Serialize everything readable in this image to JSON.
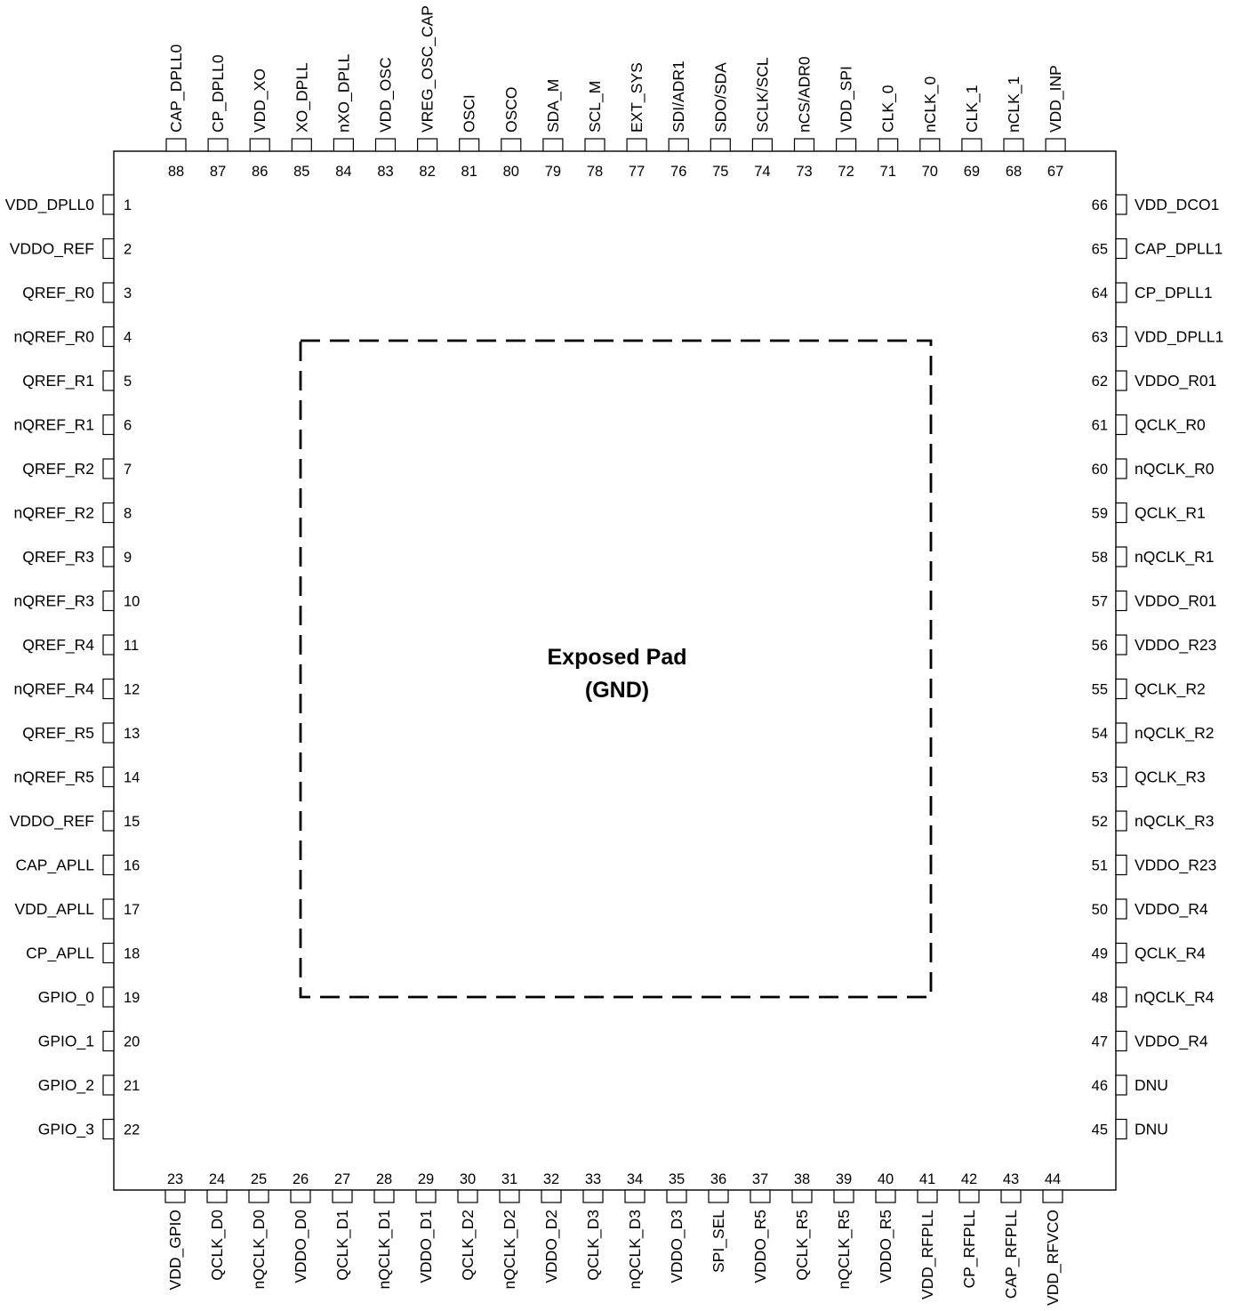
{
  "package": {
    "center_title": "Exposed Pad",
    "center_subtitle": "(GND)"
  },
  "pins": {
    "left": [
      {
        "num": "1",
        "name": "VDD_DPLL0"
      },
      {
        "num": "2",
        "name": "VDDO_REF"
      },
      {
        "num": "3",
        "name": "QREF_R0"
      },
      {
        "num": "4",
        "name": "nQREF_R0"
      },
      {
        "num": "5",
        "name": "QREF_R1"
      },
      {
        "num": "6",
        "name": "nQREF_R1"
      },
      {
        "num": "7",
        "name": "QREF_R2"
      },
      {
        "num": "8",
        "name": "nQREF_R2"
      },
      {
        "num": "9",
        "name": "QREF_R3"
      },
      {
        "num": "10",
        "name": "nQREF_R3"
      },
      {
        "num": "11",
        "name": "QREF_R4"
      },
      {
        "num": "12",
        "name": "nQREF_R4"
      },
      {
        "num": "13",
        "name": "QREF_R5"
      },
      {
        "num": "14",
        "name": "nQREF_R5"
      },
      {
        "num": "15",
        "name": "VDDO_REF"
      },
      {
        "num": "16",
        "name": "CAP_APLL"
      },
      {
        "num": "17",
        "name": "VDD_APLL"
      },
      {
        "num": "18",
        "name": "CP_APLL"
      },
      {
        "num": "19",
        "name": "GPIO_0"
      },
      {
        "num": "20",
        "name": "GPIO_1"
      },
      {
        "num": "21",
        "name": "GPIO_2"
      },
      {
        "num": "22",
        "name": "GPIO_3"
      }
    ],
    "bottom": [
      {
        "num": "23",
        "name": "VDD_GPIO"
      },
      {
        "num": "24",
        "name": "QCLK_D0"
      },
      {
        "num": "25",
        "name": "nQCLK_D0"
      },
      {
        "num": "26",
        "name": "VDDO_D0"
      },
      {
        "num": "27",
        "name": "QCLK_D1"
      },
      {
        "num": "28",
        "name": "nQCLK_D1"
      },
      {
        "num": "29",
        "name": "VDDO_D1"
      },
      {
        "num": "30",
        "name": "QCLK_D2"
      },
      {
        "num": "31",
        "name": "nQCLK_D2"
      },
      {
        "num": "32",
        "name": "VDDO_D2"
      },
      {
        "num": "33",
        "name": "QCLK_D3"
      },
      {
        "num": "34",
        "name": "nQCLK_D3"
      },
      {
        "num": "35",
        "name": "VDDO_D3"
      },
      {
        "num": "36",
        "name": "SPI_SEL"
      },
      {
        "num": "37",
        "name": "VDDO_R5"
      },
      {
        "num": "38",
        "name": "QCLK_R5"
      },
      {
        "num": "39",
        "name": "nQCLK_R5"
      },
      {
        "num": "40",
        "name": "VDDO_R5"
      },
      {
        "num": "41",
        "name": "VDD_RFPLL"
      },
      {
        "num": "42",
        "name": "CP_RFPLL"
      },
      {
        "num": "43",
        "name": "CAP_RFPLL"
      },
      {
        "num": "44",
        "name": "VDD_RFVCO"
      }
    ],
    "right": [
      {
        "num": "66",
        "name": "VDD_DCO1"
      },
      {
        "num": "65",
        "name": "CAP_DPLL1"
      },
      {
        "num": "64",
        "name": "CP_DPLL1"
      },
      {
        "num": "63",
        "name": "VDD_DPLL1"
      },
      {
        "num": "62",
        "name": "VDDO_R01"
      },
      {
        "num": "61",
        "name": "QCLK_R0"
      },
      {
        "num": "60",
        "name": "nQCLK_R0"
      },
      {
        "num": "59",
        "name": "QCLK_R1"
      },
      {
        "num": "58",
        "name": "nQCLK_R1"
      },
      {
        "num": "57",
        "name": "VDDO_R01"
      },
      {
        "num": "56",
        "name": "VDDO_R23"
      },
      {
        "num": "55",
        "name": "QCLK_R2"
      },
      {
        "num": "54",
        "name": "nQCLK_R2"
      },
      {
        "num": "53",
        "name": "QCLK_R3"
      },
      {
        "num": "52",
        "name": "nQCLK_R3"
      },
      {
        "num": "51",
        "name": "VDDO_R23"
      },
      {
        "num": "50",
        "name": "VDDO_R4"
      },
      {
        "num": "49",
        "name": "QCLK_R4"
      },
      {
        "num": "48",
        "name": "nQCLK_R4"
      },
      {
        "num": "47",
        "name": "VDDO_R4"
      },
      {
        "num": "46",
        "name": "DNU"
      },
      {
        "num": "45",
        "name": "DNU"
      }
    ],
    "top": [
      {
        "num": "88",
        "name": "CAP_DPLL0"
      },
      {
        "num": "87",
        "name": "CP_DPLL0"
      },
      {
        "num": "86",
        "name": "VDD_XO"
      },
      {
        "num": "85",
        "name": "XO_DPLL"
      },
      {
        "num": "84",
        "name": "nXO_DPLL"
      },
      {
        "num": "83",
        "name": "VDD_OSC"
      },
      {
        "num": "82",
        "name": "VREG_OSC_CAP"
      },
      {
        "num": "81",
        "name": "OSCI"
      },
      {
        "num": "80",
        "name": "OSCO"
      },
      {
        "num": "79",
        "name": "SDA_M"
      },
      {
        "num": "78",
        "name": "SCL_M"
      },
      {
        "num": "77",
        "name": "EXT_SYS"
      },
      {
        "num": "76",
        "name": "SDI/ADR1"
      },
      {
        "num": "75",
        "name": "SDO/SDA"
      },
      {
        "num": "74",
        "name": "SCLK/SCL"
      },
      {
        "num": "73",
        "name": "nCS/ADR0"
      },
      {
        "num": "72",
        "name": "VDD_SPI"
      },
      {
        "num": "71",
        "name": "CLK_0"
      },
      {
        "num": "70",
        "name": "nCLK_0"
      },
      {
        "num": "69",
        "name": "CLK_1"
      },
      {
        "num": "68",
        "name": "nCLK_1"
      },
      {
        "num": "67",
        "name": "VDD_INP"
      }
    ]
  }
}
